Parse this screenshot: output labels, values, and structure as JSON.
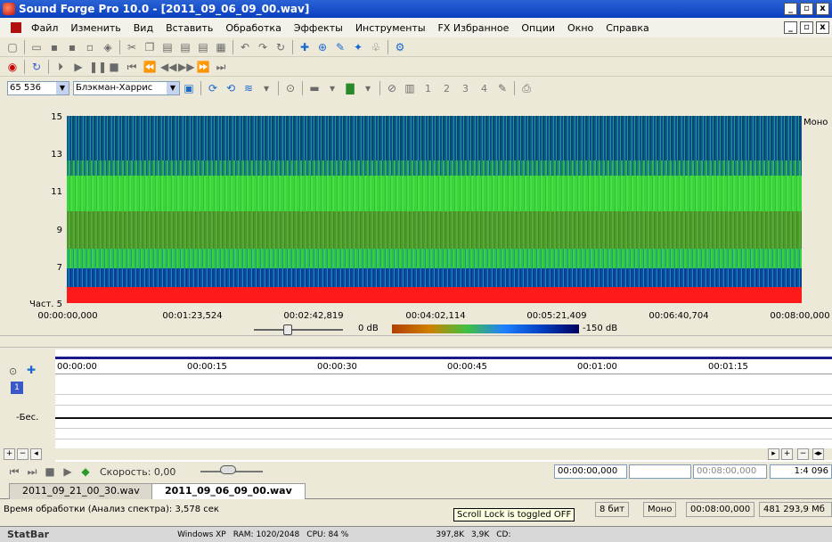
{
  "window": {
    "title": "Sound Forge Pro 10.0 - [2011_09_06_09_00.wav]",
    "min": "_",
    "max": "▫",
    "close": "x"
  },
  "menu": [
    "Файл",
    "Изменить",
    "Вид",
    "Вставить",
    "Обработка",
    "Эффекты",
    "Инструменты",
    "FX Избранное",
    "Опции",
    "Окно",
    "Справка"
  ],
  "spectrum_toolbar": {
    "fft_size": "65 536",
    "window": "Блэкман-Харрис",
    "numbers": [
      "1",
      "2",
      "3",
      "4"
    ]
  },
  "spectrogram": {
    "y_ticks": [
      "15",
      "13",
      "11",
      "9",
      "7"
    ],
    "y_bottom_label": "Част. 5",
    "x_ticks": [
      "00:00:00,000",
      "00:01:23,524",
      "00:02:42,819",
      "00:04:02,114",
      "00:05:21,409",
      "00:06:40,704",
      "00:08:00,000"
    ],
    "channel": "Моно",
    "db_min": "0 dB",
    "db_max": "-150 dB"
  },
  "track": {
    "ruler": [
      "00:00:00",
      "00:00:15",
      "00:00:30",
      "00:00:45",
      "00:01:00",
      "00:01:15"
    ],
    "channel_number": "1",
    "level_label": "-Бес."
  },
  "transport": {
    "speed_label": "Скорость: 0,00",
    "pos": "00:00:00,000",
    "end": "00:08:00,000",
    "zoom": "1:4 096"
  },
  "tabs": [
    "2011_09_21_00_30.wav",
    "2011_09_06_09_00.wav"
  ],
  "status": {
    "left": "Время обработки (Анализ спектра): 3,578 сек",
    "fields": [
      "8 бит",
      "Моно",
      "00:08:00,000",
      "481 293,9 Мб"
    ],
    "tooltip": "Scroll Lock is toggled OFF"
  },
  "statbar": {
    "brand": "StatBar",
    "os": "Windows XP",
    "ram": "RAM: 1020/2048",
    "cpu": "CPU: 84 %",
    "net_down": "397,8K",
    "net_up": "3,9K",
    "cd": "CD:"
  },
  "colors": {
    "title_bar": "#0a3fbf",
    "spectrum_red": "#ff1a1a",
    "spectrum_green": "#3bd43b",
    "spectrum_blue": "#0c4fa0"
  }
}
